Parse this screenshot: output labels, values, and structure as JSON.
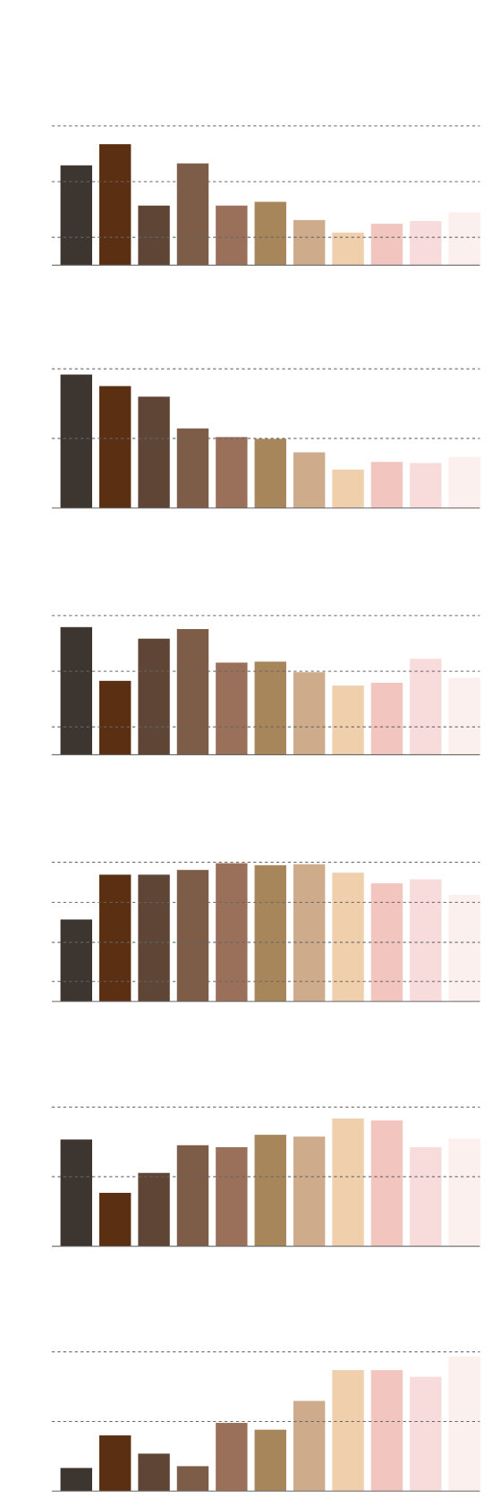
{
  "chart_data": [
    {
      "type": "bar",
      "colors": [
        "#3d3530",
        "#5a2f12",
        "#5e4535",
        "#7d5c48",
        "#9a705a",
        "#a8865c",
        "#cdab8b",
        "#efcfac",
        "#f2c5bf",
        "#f8dcdb",
        "#fbf0ee"
      ],
      "values": [
        71.7,
        86.9,
        42.8,
        73.1,
        42.8,
        45.5,
        32.4,
        23.4,
        29.7,
        31.7,
        37.9
      ],
      "ylim": [
        0,
        100
      ],
      "yticks": [
        20,
        60,
        100
      ],
      "grid": true
    },
    {
      "type": "bar",
      "colors": [
        "#3d3530",
        "#5a2f12",
        "#5e4535",
        "#7d5c48",
        "#9a705a",
        "#a8865c",
        "#cdab8b",
        "#efcfac",
        "#f2c5bf",
        "#f8dcdb",
        "#fbf0ee"
      ],
      "values": [
        95.9,
        87.6,
        80,
        57.2,
        51,
        49.7,
        40,
        27.6,
        33.1,
        32.4,
        36.6
      ],
      "ylim": [
        0,
        100
      ],
      "yticks": [
        50,
        100
      ],
      "grid": true
    },
    {
      "type": "bar",
      "colors": [
        "#3d3530",
        "#5a2f12",
        "#5e4535",
        "#7d5c48",
        "#9a705a",
        "#a8865c",
        "#cdab8b",
        "#efcfac",
        "#f2c5bf",
        "#f8dcdb",
        "#fbf0ee"
      ],
      "values": [
        91.7,
        53.1,
        83.4,
        90.3,
        66.2,
        66.9,
        59.3,
        49.7,
        51.7,
        69,
        55.2
      ],
      "ylim": [
        0,
        100
      ],
      "yticks": [
        20,
        60,
        100
      ],
      "grid": true
    },
    {
      "type": "bar",
      "colors": [
        "#3d3530",
        "#5a2f12",
        "#5e4535",
        "#7d5c48",
        "#9a705a",
        "#a8865c",
        "#cdab8b",
        "#efcfac",
        "#f2c5bf",
        "#f8dcdb",
        "#fbf0ee"
      ],
      "values": [
        58.9,
        91.1,
        91.1,
        94.5,
        99.3,
        97.9,
        98.6,
        92.5,
        84.9,
        87.7,
        76.7
      ],
      "ylim": [
        0,
        100
      ],
      "yticks": [
        14.4,
        42.5,
        71.2,
        100
      ],
      "grid": true
    },
    {
      "type": "bar",
      "colors": [
        "#3d3530",
        "#5a2f12",
        "#5e4535",
        "#7d5c48",
        "#9a705a",
        "#a8865c",
        "#cdab8b",
        "#efcfac",
        "#f2c5bf",
        "#f8dcdb",
        "#fbf0ee"
      ],
      "values": [
        76.7,
        38.4,
        52.7,
        72.6,
        71.2,
        80.1,
        78.8,
        91.8,
        90.4,
        71.2,
        77.4
      ],
      "ylim": [
        0,
        100
      ],
      "yticks": [
        50,
        100
      ],
      "grid": true
    },
    {
      "type": "bar",
      "colors": [
        "#3d3530",
        "#5a2f12",
        "#5e4535",
        "#7d5c48",
        "#9a705a",
        "#a8865c",
        "#cdab8b",
        "#efcfac",
        "#f2c5bf",
        "#f8dcdb",
        "#fbf0ee"
      ],
      "values": [
        16.6,
        40,
        26.9,
        17.9,
        49,
        44.1,
        64.8,
        86.9,
        86.9,
        82.1,
        96.6
      ],
      "ylim": [
        0,
        100
      ],
      "yticks": [
        50,
        100
      ],
      "grid": true
    }
  ]
}
